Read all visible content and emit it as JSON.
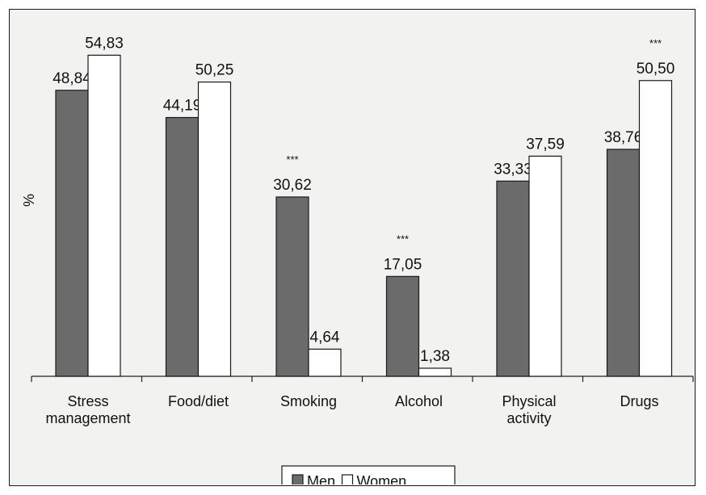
{
  "chart_data": {
    "type": "bar",
    "ylabel": "%",
    "xlabel": "",
    "ylim": [
      0,
      60
    ],
    "grid": false,
    "legend_position": "bottom",
    "categories": [
      [
        "Stress",
        "management"
      ],
      [
        "Food/diet"
      ],
      [
        "Smoking"
      ],
      [
        "Alcohol"
      ],
      [
        "Physical",
        "activity"
      ],
      [
        "Drugs"
      ]
    ],
    "series": [
      {
        "name": "Men",
        "values": [
          48.84,
          44.19,
          30.62,
          17.05,
          33.33,
          38.76
        ],
        "labels": [
          "48,84",
          "44,19",
          "30,62",
          "17,05",
          "33,33",
          "38,76"
        ],
        "color": "#6b6b6b"
      },
      {
        "name": "Women",
        "values": [
          54.83,
          50.25,
          4.64,
          1.38,
          37.59,
          50.5
        ],
        "labels": [
          "54,83",
          "50,25",
          "4,64",
          "1,38",
          "37,59",
          "50,50"
        ],
        "color": "#ffffff"
      }
    ],
    "significance": [
      "",
      "",
      "***",
      "***",
      "",
      "***"
    ]
  }
}
